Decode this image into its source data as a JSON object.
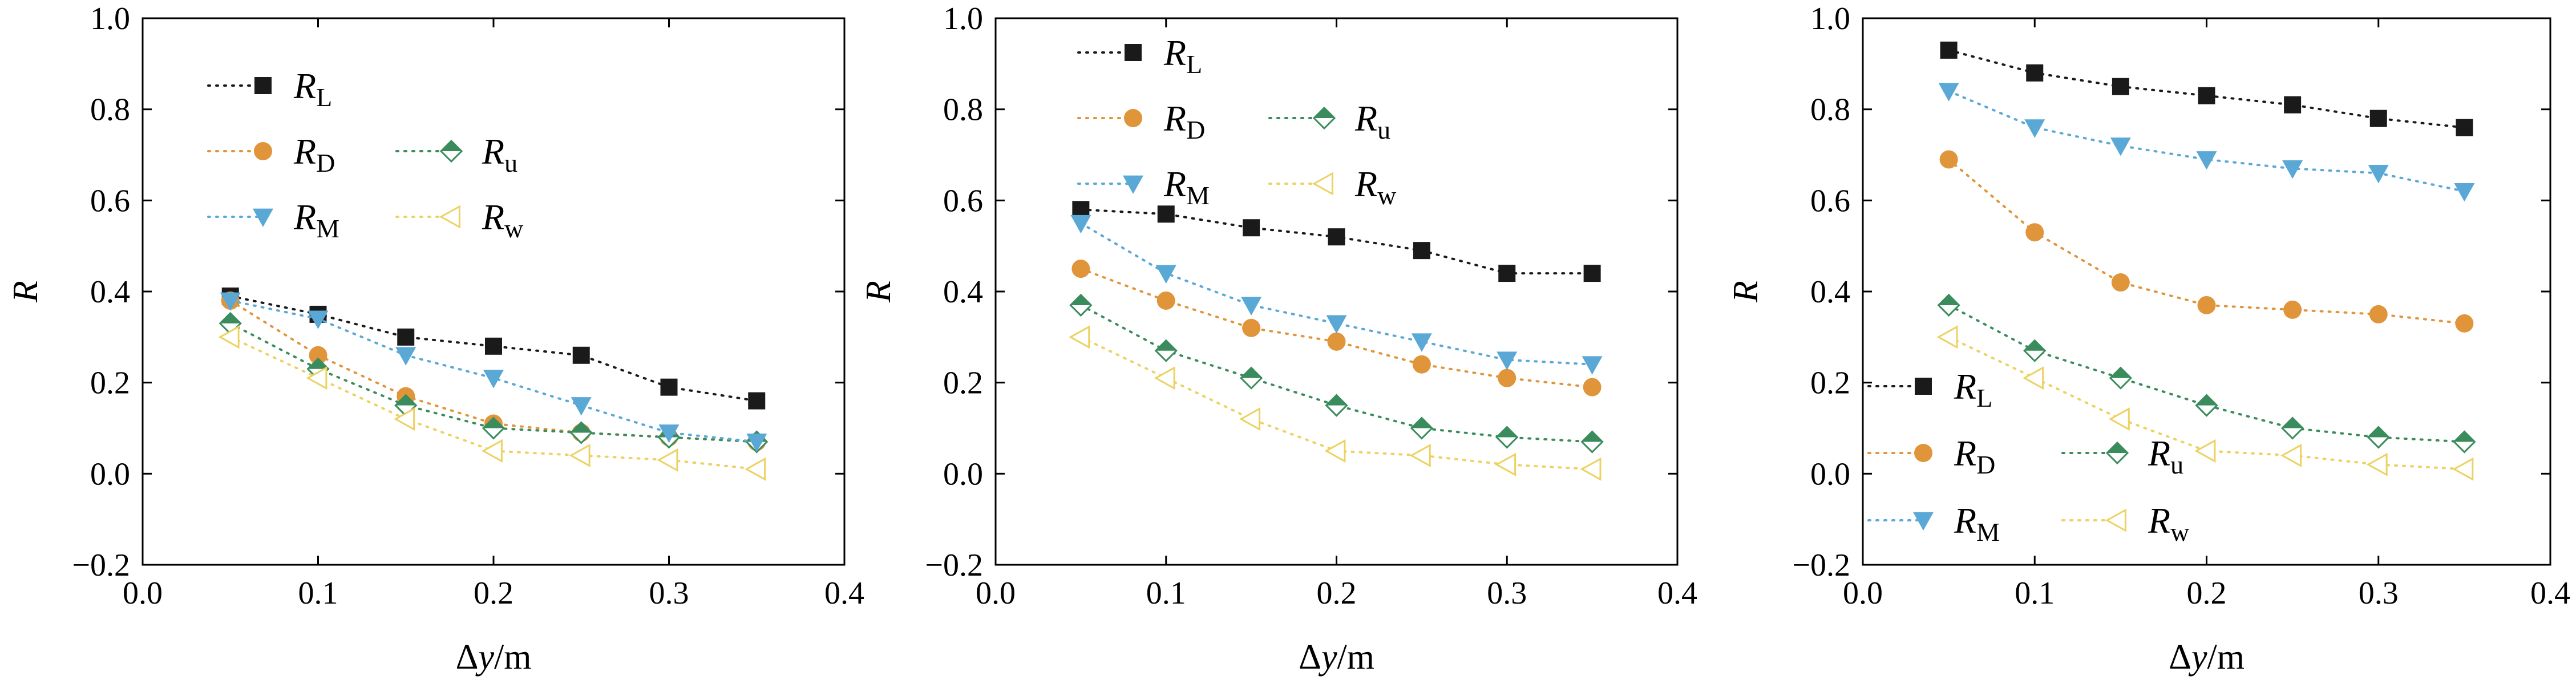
{
  "colors": {
    "R_L": "#1a1a1a",
    "R_D": "#e0953a",
    "R_u": "#3a8c5c",
    "R_M": "#5aa8d6",
    "R_w": "#ecd262"
  },
  "chart_data": [
    {
      "type": "line",
      "xlabel": "Δy/m",
      "ylabel": "R",
      "xlim": [
        0.0,
        0.4
      ],
      "ylim": [
        -0.2,
        1.0
      ],
      "xticks": [
        "0.0",
        "0.1",
        "0.2",
        "0.3",
        "0.4"
      ],
      "yticks": [
        "−0.2",
        "0.0",
        "0.2",
        "0.4",
        "0.6",
        "0.8",
        "1.0"
      ],
      "legend_placement": "top-left",
      "x": [
        0.05,
        0.1,
        0.15,
        0.2,
        0.25,
        0.3,
        0.35
      ],
      "series": [
        {
          "name": "R_L",
          "label_main": "R",
          "label_sub": "L",
          "marker": "square",
          "values": [
            0.39,
            0.35,
            0.3,
            0.28,
            0.26,
            0.19,
            0.16
          ]
        },
        {
          "name": "R_D",
          "label_main": "R",
          "label_sub": "D",
          "marker": "circle",
          "values": [
            0.38,
            0.26,
            0.17,
            0.11,
            0.09,
            0.08,
            0.07
          ]
        },
        {
          "name": "R_u",
          "label_main": "R",
          "label_sub": "u",
          "marker": "diamond",
          "values": [
            0.33,
            0.23,
            0.15,
            0.1,
            0.09,
            0.08,
            0.07
          ]
        },
        {
          "name": "R_M",
          "label_main": "R",
          "label_sub": "M",
          "marker": "triangle-down",
          "values": [
            0.38,
            0.34,
            0.26,
            0.21,
            0.15,
            0.09,
            0.07
          ]
        },
        {
          "name": "R_w",
          "label_main": "R",
          "label_sub": "w",
          "marker": "triangle-left",
          "values": [
            0.3,
            0.21,
            0.12,
            0.05,
            0.04,
            0.03,
            0.01
          ]
        }
      ]
    },
    {
      "type": "line",
      "xlabel": "Δy/m",
      "ylabel": "R",
      "xlim": [
        0.0,
        0.4
      ],
      "ylim": [
        -0.2,
        1.0
      ],
      "xticks": [
        "0.0",
        "0.1",
        "0.2",
        "0.3",
        "0.4"
      ],
      "yticks": [
        "−0.2",
        "0.0",
        "0.2",
        "0.4",
        "0.6",
        "0.8",
        "1.0"
      ],
      "legend_placement": "top-center",
      "x": [
        0.05,
        0.1,
        0.15,
        0.2,
        0.25,
        0.3,
        0.35
      ],
      "series": [
        {
          "name": "R_L",
          "label_main": "R",
          "label_sub": "L",
          "marker": "square",
          "values": [
            0.58,
            0.57,
            0.54,
            0.52,
            0.49,
            0.44,
            0.44
          ]
        },
        {
          "name": "R_D",
          "label_main": "R",
          "label_sub": "D",
          "marker": "circle",
          "values": [
            0.45,
            0.38,
            0.32,
            0.29,
            0.24,
            0.21,
            0.19
          ]
        },
        {
          "name": "R_u",
          "label_main": "R",
          "label_sub": "u",
          "marker": "diamond",
          "values": [
            0.37,
            0.27,
            0.21,
            0.15,
            0.1,
            0.08,
            0.07
          ]
        },
        {
          "name": "R_M",
          "label_main": "R",
          "label_sub": "M",
          "marker": "triangle-down",
          "values": [
            0.55,
            0.44,
            0.37,
            0.33,
            0.29,
            0.25,
            0.24
          ]
        },
        {
          "name": "R_w",
          "label_main": "R",
          "label_sub": "w",
          "marker": "triangle-left",
          "values": [
            0.3,
            0.21,
            0.12,
            0.05,
            0.04,
            0.02,
            0.01
          ]
        }
      ]
    },
    {
      "type": "line",
      "xlabel": "Δy/m",
      "ylabel": "R",
      "xlim": [
        0.0,
        0.4
      ],
      "ylim": [
        -0.2,
        1.0
      ],
      "xticks": [
        "0.0",
        "0.1",
        "0.2",
        "0.3",
        "0.4"
      ],
      "yticks": [
        "−0.2",
        "0.0",
        "0.2",
        "0.4",
        "0.6",
        "0.8",
        "1.0"
      ],
      "legend_placement": "bottom-left",
      "x": [
        0.05,
        0.1,
        0.15,
        0.2,
        0.25,
        0.3,
        0.35
      ],
      "series": [
        {
          "name": "R_L",
          "label_main": "R",
          "label_sub": "L",
          "marker": "square",
          "values": [
            0.93,
            0.88,
            0.85,
            0.83,
            0.81,
            0.78,
            0.76
          ]
        },
        {
          "name": "R_D",
          "label_main": "R",
          "label_sub": "D",
          "marker": "circle",
          "values": [
            0.69,
            0.53,
            0.42,
            0.37,
            0.36,
            0.35,
            0.33
          ]
        },
        {
          "name": "R_u",
          "label_main": "R",
          "label_sub": "u",
          "marker": "diamond",
          "values": [
            0.37,
            0.27,
            0.21,
            0.15,
            0.1,
            0.08,
            0.07
          ]
        },
        {
          "name": "R_M",
          "label_main": "R",
          "label_sub": "M",
          "marker": "triangle-down",
          "values": [
            0.84,
            0.76,
            0.72,
            0.69,
            0.67,
            0.66,
            0.62
          ]
        },
        {
          "name": "R_w",
          "label_main": "R",
          "label_sub": "w",
          "marker": "triangle-left",
          "values": [
            0.3,
            0.21,
            0.12,
            0.05,
            0.04,
            0.02,
            0.01
          ]
        }
      ]
    }
  ]
}
